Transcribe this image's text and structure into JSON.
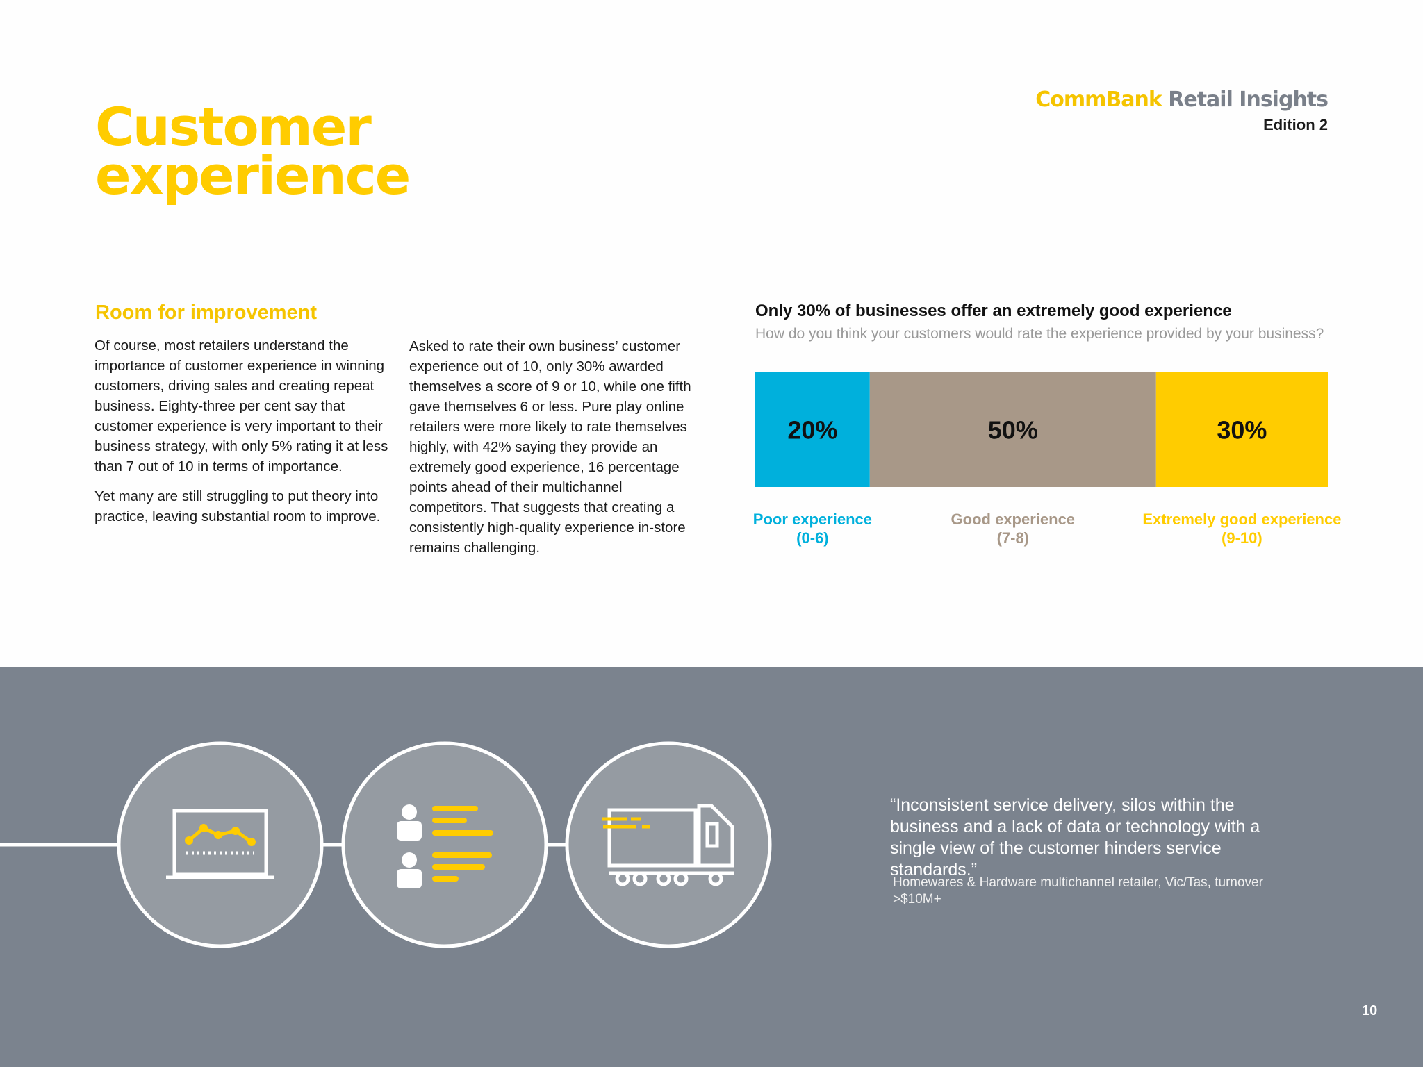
{
  "header": {
    "brand": "CommBank",
    "product": "Retail Insights",
    "edition": "Edition 2"
  },
  "title": [
    "Customer",
    "experience"
  ],
  "section": {
    "heading": "Room for improvement",
    "column_1": [
      "Of course, most retailers understand the importance of customer experience in winning customers, driving sales and creating repeat business. Eighty-three per cent say that customer experience is very important to their business strategy, with only 5% rating it at less than 7 out of 10 in terms of importance.",
      "Yet many are still struggling to put theory into practice, leaving substantial room to improve."
    ],
    "column_2": [
      "Asked to rate their own business’ customer experience out of 10, only 30% awarded themselves a score of 9 or 10, while one fifth gave themselves 6 or less. Pure play online retailers were more likely to rate themselves highly, with 42% saying they provide an extremely good experience, 16 percentage points ahead of their multichannel competitors. That suggests that creating a consistently high-quality experience in-store remains challenging."
    ]
  },
  "chart_data": {
    "type": "stacked_bar",
    "title": "Only 30% of businesses offer an extremely good experience",
    "subtitle": "How do you think your customers would rate the experience provided by your business?",
    "series": [
      {
        "name": "Poor experience",
        "range_label": "(0-6)",
        "color": "#00b0dc",
        "values": [
          20
        ],
        "value_labels": [
          "20%"
        ]
      },
      {
        "name": "Good experience",
        "range_label": "(7-8)",
        "color": "#a89888",
        "values": [
          50
        ],
        "value_labels": [
          "50%"
        ]
      },
      {
        "name": "Extremely good experience",
        "range_label": "(9-10)",
        "color": "#ffcc00",
        "values": [
          30
        ],
        "value_labels": [
          "30%"
        ]
      }
    ]
  },
  "quote": {
    "text": "“Inconsistent service delivery, silos within the business and a lack of data or technology with a single view of the customer hinders service standards.”",
    "attribution": "Homewares & Hardware multichannel retailer, Vic/Tas, turnover >$10M+"
  },
  "page_number": "10"
}
